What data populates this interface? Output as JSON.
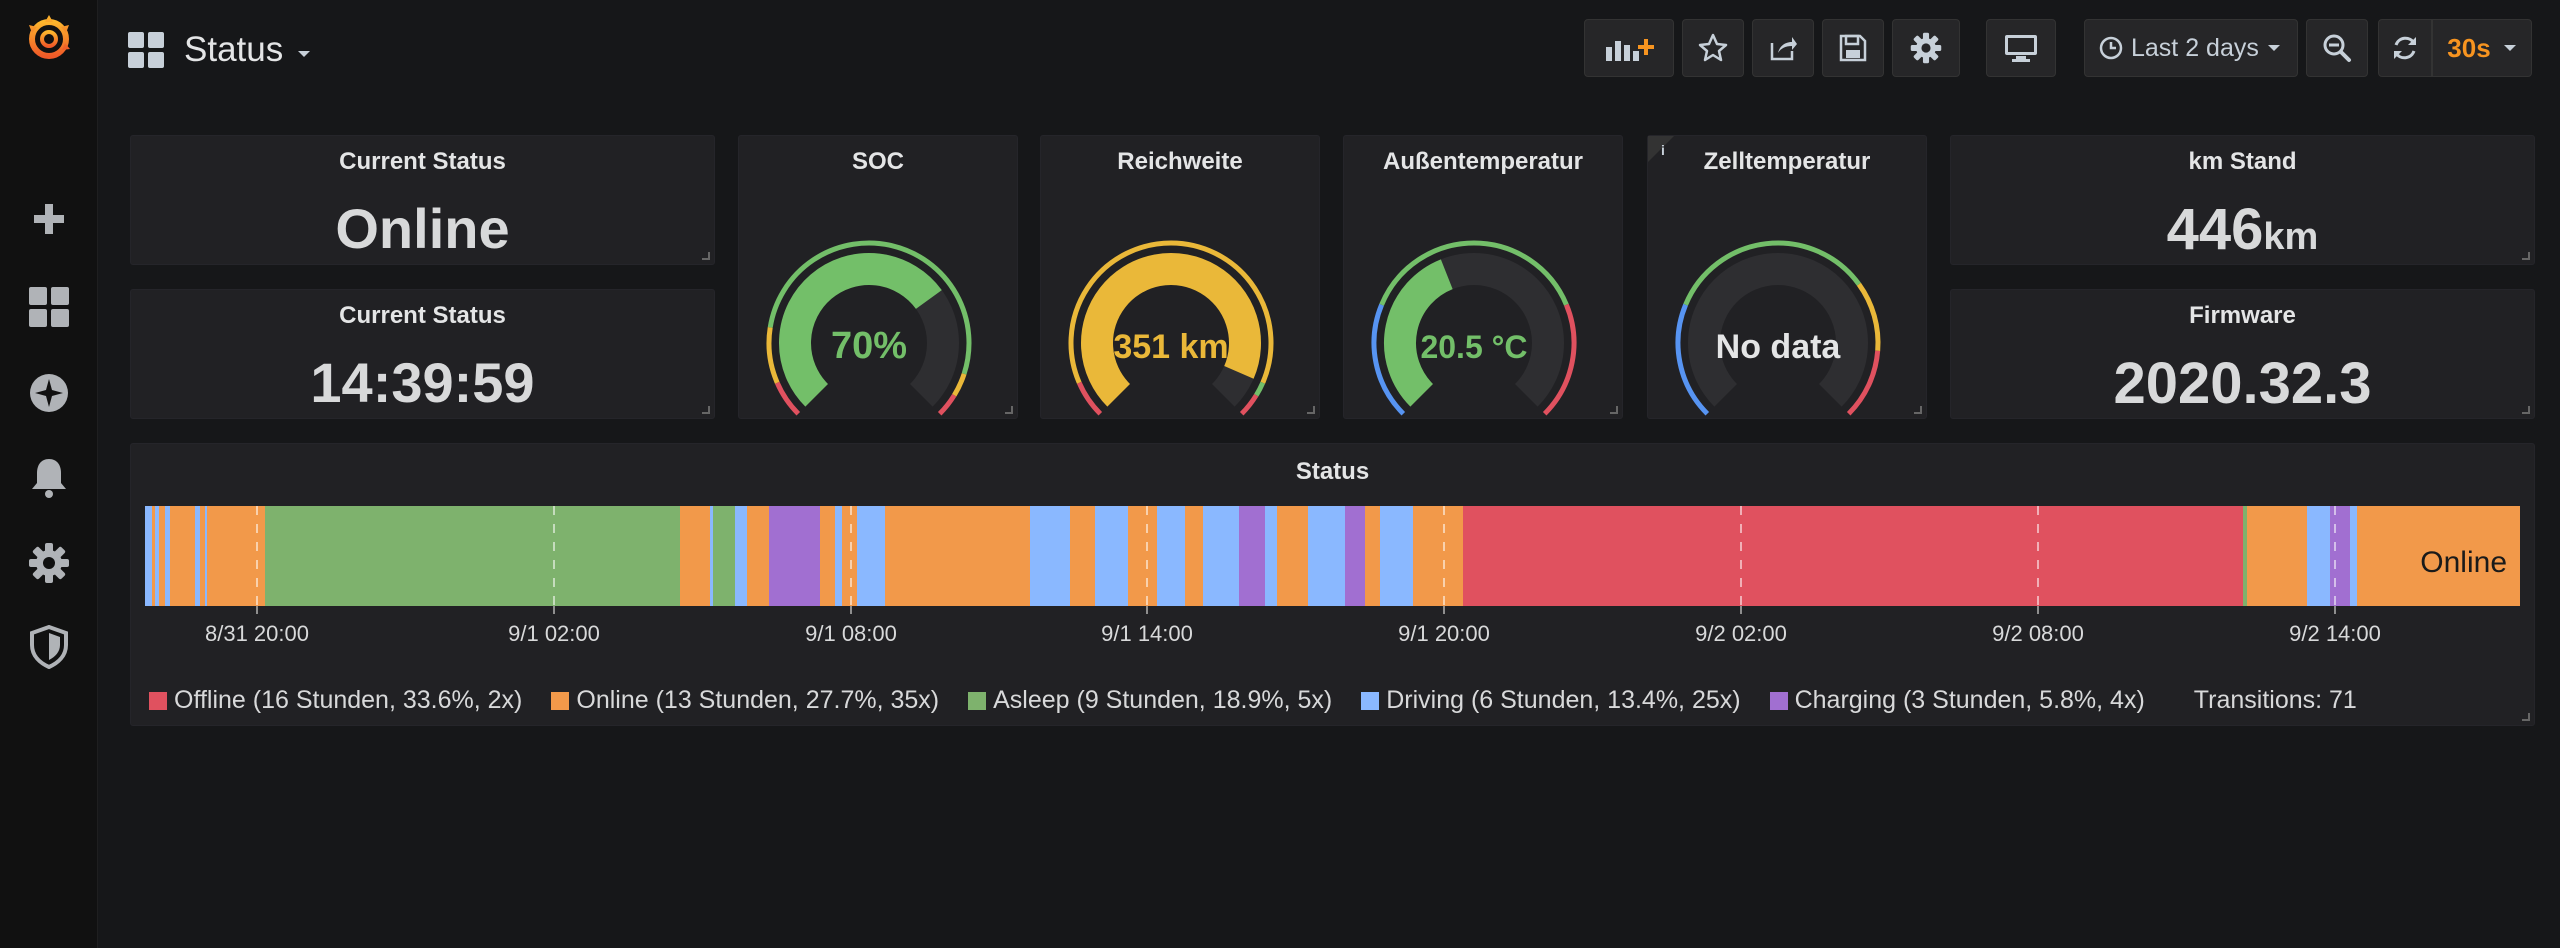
{
  "dashboard": {
    "title": "Status"
  },
  "toolbar": {
    "time_range": "Last 2 days",
    "refresh_interval": "30s",
    "refresh_color": "#f79420"
  },
  "sidebar": {
    "items": [
      {
        "icon": "grafana-logo-icon"
      },
      {
        "icon": "plus-icon"
      },
      {
        "icon": "dashboards-icon"
      },
      {
        "icon": "explore-compass-icon"
      },
      {
        "icon": "alerting-bell-icon"
      },
      {
        "icon": "configuration-gear-icon"
      },
      {
        "icon": "server-admin-shield-icon"
      }
    ]
  },
  "panels": {
    "current_status": {
      "title": "Current Status",
      "value": "Online"
    },
    "current_time": {
      "title": "Current Status",
      "value": "14:39:59"
    },
    "soc": {
      "title": "SOC",
      "value": "70%",
      "fraction": 0.7,
      "color": "#73bf69"
    },
    "range": {
      "title": "Reichweite",
      "value": "351 km",
      "fraction": 0.92,
      "color": "#eab839"
    },
    "outside_temp": {
      "title": "Außentemperatur",
      "value": "20.5 °C",
      "fraction": 0.42,
      "color": "#73bf69"
    },
    "cell_temp": {
      "title": "Zelltemperatur",
      "value": "No data",
      "info": "i"
    },
    "odometer": {
      "title": "km Stand",
      "value": "446",
      "unit": "km"
    },
    "firmware": {
      "title": "Firmware",
      "value": "2020.32.3"
    }
  },
  "status_panel": {
    "title": "Status",
    "current_label": "Online",
    "x_ticks": [
      "8/31 20:00",
      "9/1 02:00",
      "9/1 08:00",
      "9/1 14:00",
      "9/1 20:00",
      "9/2 02:00",
      "9/2 08:00",
      "9/2 14:00"
    ],
    "legend": [
      {
        "label": "Offline (16 Stunden, 33.6%, 2x)",
        "color": "#e0515f"
      },
      {
        "label": "Online (13 Stunden, 27.7%, 35x)",
        "color": "#f2994a"
      },
      {
        "label": "Asleep (9 Stunden, 18.9%, 5x)",
        "color": "#7eb26d"
      },
      {
        "label": "Driving (6 Stunden, 13.4%, 25x)",
        "color": "#8ab8ff"
      },
      {
        "label": "Charging (3 Stunden, 5.8%, 4x)",
        "color": "#a16fd1"
      }
    ],
    "transitions": "Transitions: 71"
  }
}
